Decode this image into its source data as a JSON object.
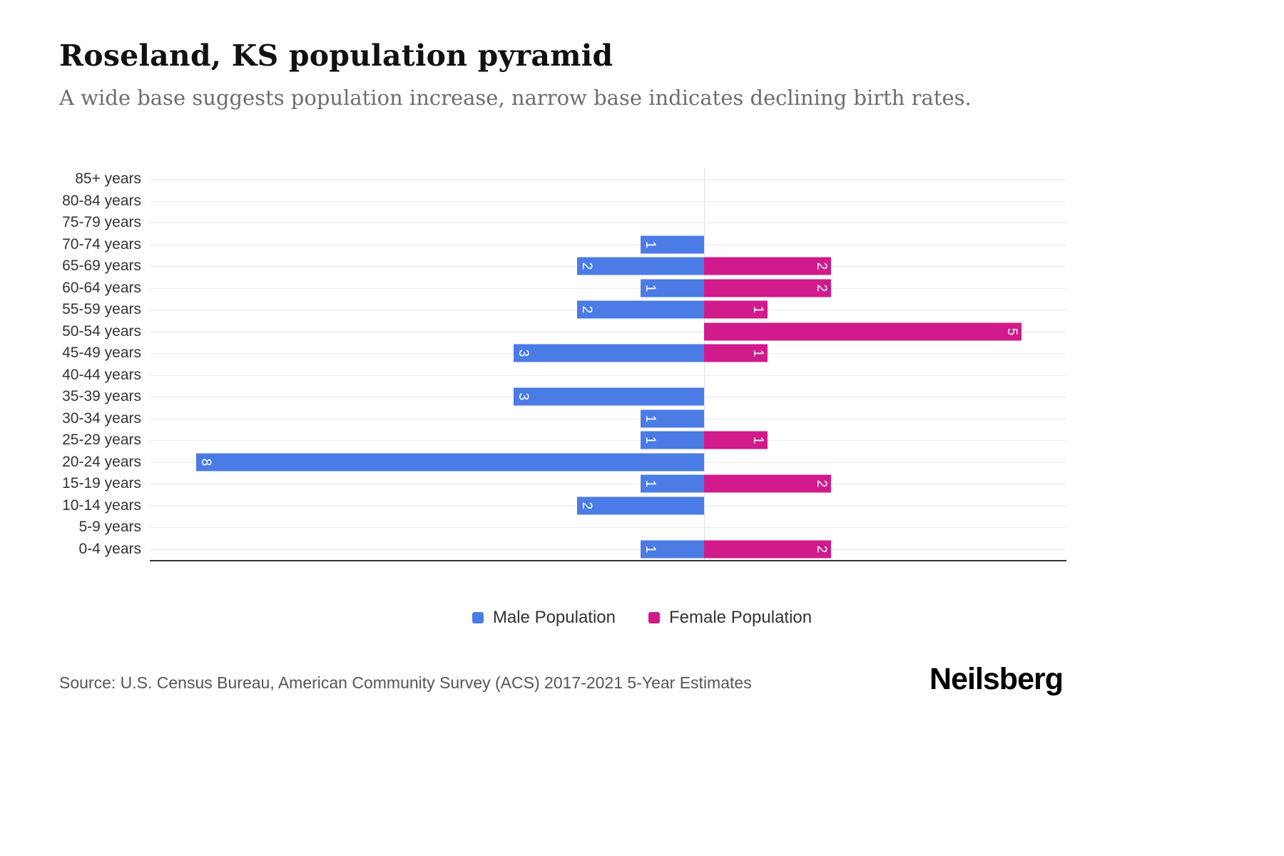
{
  "chart_data": {
    "type": "bar",
    "subtype": "population-pyramid",
    "orientation": "horizontal",
    "title": "Roseland, KS population pyramid",
    "subtitle": "A wide base suggests population increase, narrow base indicates declining birth rates.",
    "categories": [
      "85+ years",
      "80-84 years",
      "75-79 years",
      "70-74 years",
      "65-69 years",
      "60-64 years",
      "55-59 years",
      "50-54 years",
      "45-49 years",
      "40-44 years",
      "35-39 years",
      "30-34 years",
      "25-29 years",
      "20-24 years",
      "15-19 years",
      "10-14 years",
      "5-9 years",
      "0-4 years"
    ],
    "series": [
      {
        "name": "Male Population",
        "color": "#4b7be5",
        "direction": "left",
        "values": [
          0,
          0,
          0,
          1,
          2,
          1,
          2,
          0,
          3,
          0,
          3,
          1,
          1,
          8,
          1,
          2,
          0,
          1
        ]
      },
      {
        "name": "Female Population",
        "color": "#d11a8c",
        "direction": "right",
        "values": [
          0,
          0,
          0,
          0,
          2,
          2,
          1,
          5,
          1,
          0,
          0,
          0,
          1,
          0,
          2,
          0,
          0,
          2
        ]
      }
    ],
    "axis": {
      "male_max": 8,
      "female_max": 5,
      "center_value": 0
    },
    "value_labels": "inside bar end, rotated, white",
    "grid": true,
    "legend_position": "bottom-center"
  },
  "footer": {
    "source": "Source: U.S. Census Bureau, American Community Survey (ACS) 2017-2021 5-Year Estimates",
    "logo": "Neilsberg"
  }
}
